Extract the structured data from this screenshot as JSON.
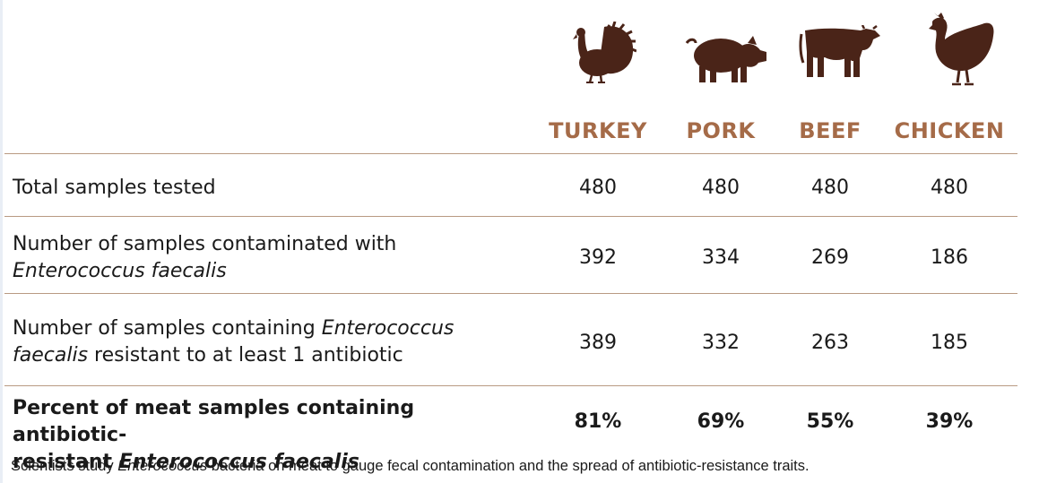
{
  "chart_data": {
    "type": "table",
    "columns": [
      "TURKEY",
      "PORK",
      "BEEF",
      "CHICKEN"
    ],
    "rows": [
      {
        "label_parts": [
          "Total samples tested"
        ],
        "values": [
          "480",
          "480",
          "480",
          "480"
        ]
      },
      {
        "label_parts": [
          "Number of samples contaminated with",
          "Enterococcus faecalis"
        ],
        "values": [
          "392",
          "334",
          "269",
          "186"
        ]
      },
      {
        "label_parts": [
          "Number of samples containing",
          "Enterococcus",
          "faecalis",
          "resistant to at least 1 antibiotic"
        ],
        "values": [
          "389",
          "332",
          "263",
          "185"
        ]
      },
      {
        "label_parts": [
          "Percent of meat samples containing antibiotic-",
          "resistant",
          "Enterococcus faecalis"
        ],
        "values": [
          "81%",
          "69%",
          "55%",
          "39%"
        ]
      }
    ],
    "footnote_parts": [
      "Scientists study",
      "Enterococcus",
      "bacteria on meat to gauge fecal contamination and the spread of antibiotic-resistance traits."
    ]
  },
  "colors": {
    "header_text": "#a56b48",
    "icon_fill": "#4a2418",
    "rule": "#b99a82"
  },
  "icons": [
    "turkey-icon",
    "pig-icon",
    "cow-icon",
    "chicken-icon"
  ]
}
